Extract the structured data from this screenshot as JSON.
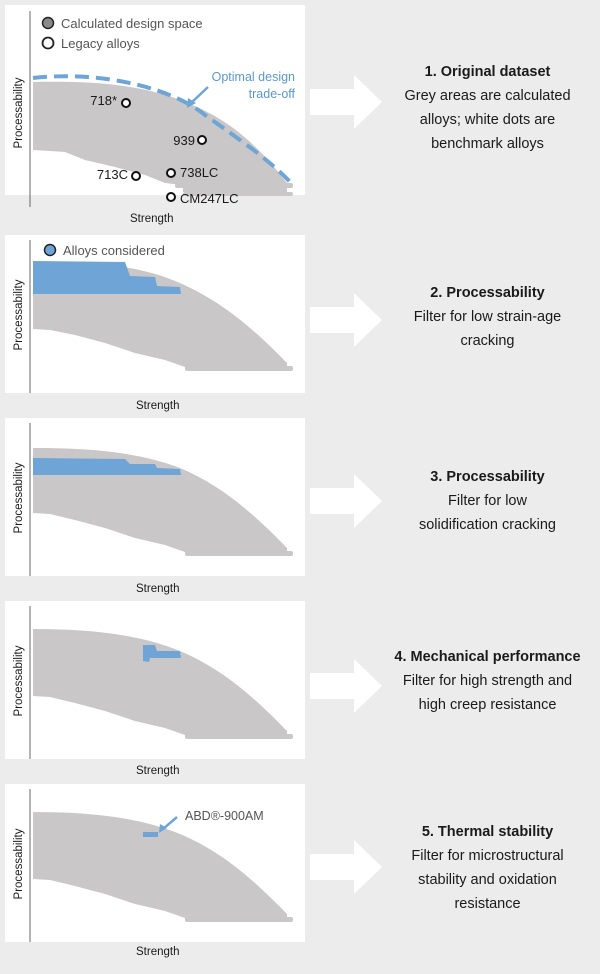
{
  "colors": {
    "grey_region": "#c9c7c7",
    "blue_region": "#6fa5d6",
    "dashed_curve": "#6fa5d6",
    "panel_bg": "#ffffff",
    "page_bg": "#ececec",
    "arrow_fill": "#ffffff"
  },
  "icons": {
    "arrow": "right-arrow-icon",
    "grey_dot": "grey-dot-icon",
    "white_dot": "white-dot-icon",
    "blue_dot": "blue-dot-icon"
  },
  "axes": {
    "x_label": "Strength",
    "y_label": "Processability"
  },
  "panel1": {
    "legend": [
      "Calculated design space",
      "Legacy alloys"
    ],
    "optimal_label": [
      "Optimal design",
      "trade-off"
    ],
    "alloys": [
      "718*",
      "939",
      "713C",
      "738LC",
      "CM247LC"
    ]
  },
  "panel2": {
    "legend": "Alloys considered"
  },
  "panel5": {
    "annotation": "ABD®-900AM"
  },
  "steps": [
    {
      "title": "1. Original dataset",
      "lines": [
        "Grey areas are calculated",
        "alloys; white dots are",
        "benchmark alloys"
      ]
    },
    {
      "title": "2. Processability",
      "lines": [
        "Filter for low strain-age",
        "cracking"
      ]
    },
    {
      "title": "3. Processability",
      "lines": [
        "Filter for low",
        "solidification cracking"
      ]
    },
    {
      "title": "4. Mechanical performance",
      "lines": [
        "Filter for high strength and",
        "high creep resistance"
      ]
    },
    {
      "title": "5. Thermal stability",
      "lines": [
        "Filter for microstructural",
        "stability and oxidation",
        "resistance"
      ]
    }
  ]
}
